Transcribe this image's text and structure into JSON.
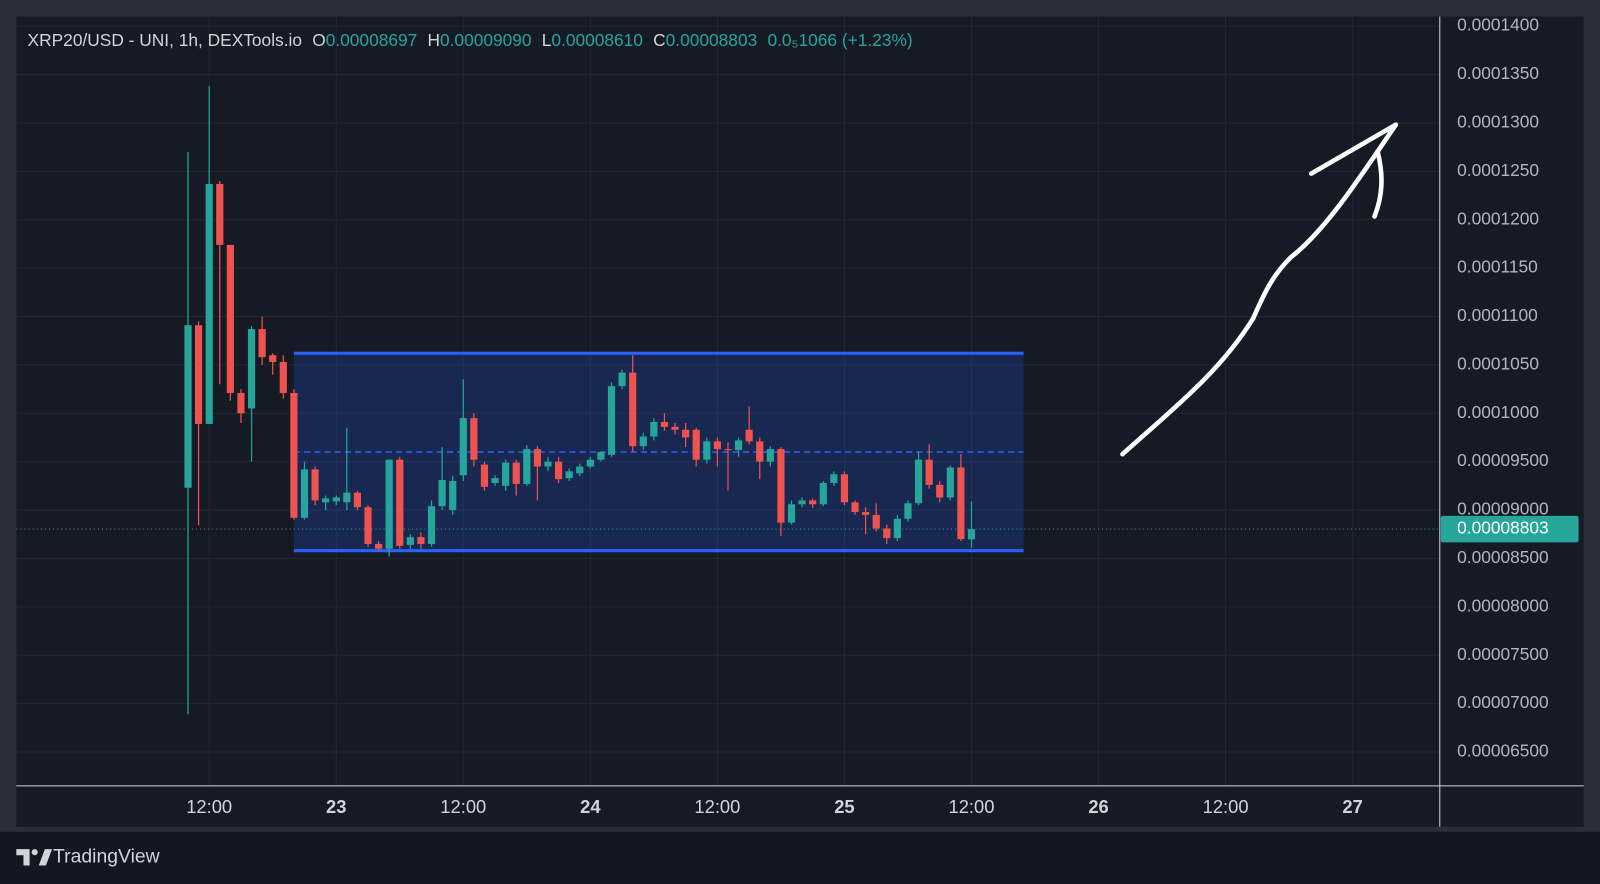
{
  "chart_data": {
    "type": "candlestick",
    "header": {
      "symbol": "XRP20/USD - UNI, 1h, DEXTools.io",
      "open_label": "O",
      "open": "0.00008697",
      "high_label": "H",
      "high": "0.00009090",
      "low_label": "L",
      "low": "0.00008610",
      "close_label": "C",
      "close": "0.00008803",
      "change": "0.0₅1066 (+1.23%)"
    },
    "x": [
      22.4167,
      22.4583,
      22.5,
      22.5417,
      22.5833,
      22.625,
      22.6667,
      22.7083,
      22.75,
      22.7917,
      22.8333,
      22.875,
      22.9167,
      22.9583,
      23,
      23.0417,
      23.0833,
      23.125,
      23.1667,
      23.2083,
      23.25,
      23.2917,
      23.3333,
      23.375,
      23.4167,
      23.4583,
      23.5,
      23.5417,
      23.5833,
      23.625,
      23.6667,
      23.7083,
      23.75,
      23.7917,
      23.8333,
      23.875,
      23.9167,
      23.9583,
      24,
      24.0417,
      24.0833,
      24.125,
      24.1667,
      24.2083,
      24.25,
      24.2917,
      24.3333,
      24.375,
      24.4167,
      24.4583,
      24.5,
      24.5417,
      24.5833,
      24.625,
      24.6667,
      24.7083,
      24.75,
      24.7917,
      24.8333,
      24.875,
      24.9167,
      24.9583,
      25,
      25.0417,
      25.0833,
      25.125,
      25.1667,
      25.2083,
      25.25,
      25.2917,
      25.3333,
      25.375,
      25.4167,
      25.4583,
      25.5
    ],
    "open": [
      9.23e-05,
      0.0001091,
      9.89e-05,
      0.0001237,
      0.0001174,
      0.0001021,
      0.0001005,
      0.0001087,
      0.000106,
      0.0001053,
      0.0001021,
      8.92e-05,
      9.42e-05,
      9.08e-05,
      9.09e-05,
      9.08e-05,
      9.18e-05,
      9.03e-05,
      8.65e-05,
      8.6e-05,
      9.52e-05,
      8.64e-05,
      8.72e-05,
      8.65e-05,
      9.04e-05,
      9e-05,
      9.36e-05,
      9.95e-05,
      9.47e-05,
      9.28e-05,
      9.25e-05,
      9.49e-05,
      9.27e-05,
      9.63e-05,
      9.45e-05,
      9.5e-05,
      9.33e-05,
      9.38e-05,
      9.45e-05,
      9.52e-05,
      9.57e-05,
      0.0001028,
      0.0001042,
      9.66e-05,
      9.76e-05,
      9.91e-05,
      9.86e-05,
      9.83e-05,
      9.83e-05,
      9.52e-05,
      9.71e-05,
      9.63e-05,
      9.62e-05,
      9.83e-05,
      9.71e-05,
      9.5e-05,
      9.63e-05,
      8.87e-05,
      9.06e-05,
      9.1e-05,
      9.06e-05,
      9.28e-05,
      9.37e-05,
      9.08e-05,
      8.98e-05,
      8.95e-05,
      8.81e-05,
      8.71e-05,
      8.91e-05,
      9.07e-05,
      9.52e-05,
      9.26e-05,
      9.13e-05,
      9.44e-05,
      8.697e-05
    ],
    "high": [
      0.000127,
      0.0001095,
      0.0001338,
      0.000124,
      0.0001174,
      0.0001025,
      0.000109,
      0.00011,
      0.0001062,
      0.000106,
      0.0001025,
      9.5e-05,
      9.45e-05,
      9.15e-05,
      9.15e-05,
      9.85e-05,
      9.2e-05,
      9.05e-05,
      8.68e-05,
      9.52e-05,
      9.55e-05,
      8.75e-05,
      8.77e-05,
      9.1e-05,
      9.65e-05,
      9.35e-05,
      0.0001035,
      0.0001,
      9.5e-05,
      9.36e-05,
      9.52e-05,
      9.52e-05,
      9.67e-05,
      9.66e-05,
      9.55e-05,
      9.55e-05,
      9.43e-05,
      9.48e-05,
      9.55e-05,
      9.6e-05,
      0.0001032,
      0.0001045,
      0.000106,
      9.8e-05,
      9.95e-05,
      0.0001,
      9.9e-05,
      9.9e-05,
      9.85e-05,
      9.75e-05,
      9.75e-05,
      9.7e-05,
      9.75e-05,
      0.0001007,
      9.75e-05,
      9.66e-05,
      9.65e-05,
      9.1e-05,
      9.13e-05,
      9.12e-05,
      9.3e-05,
      9.4e-05,
      9.4e-05,
      9.1e-05,
      9.03e-05,
      9.07e-05,
      8.85e-05,
      8.95e-05,
      9.1e-05,
      9.6e-05,
      9.68e-05,
      9.3e-05,
      9.46e-05,
      9.58e-05,
      9.09e-05
    ],
    "low": [
      6.89e-05,
      8.84e-05,
      9.89e-05,
      0.000103,
      0.0001013,
      9.9e-05,
      9.5e-05,
      0.000105,
      0.000104,
      0.0001015,
      8.9e-05,
      8.9e-05,
      9.05e-05,
      9e-05,
      9.05e-05,
      9e-05,
      9e-05,
      8.62e-05,
      8.58e-05,
      8.52e-05,
      8.6e-05,
      8.6e-05,
      8.6e-05,
      8.62e-05,
      9e-05,
      8.95e-05,
      9.3e-05,
      9.45e-05,
      9.2e-05,
      9.25e-05,
      9.2e-05,
      9.15e-05,
      9.25e-05,
      9.1e-05,
      9.4e-05,
      9.28e-05,
      9.3e-05,
      9.35e-05,
      9.43e-05,
      9.5e-05,
      9.55e-05,
      0.0001025,
      9.6e-05,
      9.62e-05,
      9.72e-05,
      9.82e-05,
      9.78e-05,
      9.65e-05,
      9.45e-05,
      9.48e-05,
      9.45e-05,
      9.2e-05,
      9.55e-05,
      9.68e-05,
      9.32e-05,
      9.45e-05,
      8.73e-05,
      8.85e-05,
      9.03e-05,
      9.02e-05,
      9.04e-05,
      9.25e-05,
      9.05e-05,
      8.95e-05,
      8.75e-05,
      8.78e-05,
      8.65e-05,
      8.68e-05,
      8.88e-05,
      9.05e-05,
      9.22e-05,
      9.08e-05,
      9.1e-05,
      8.68e-05,
      8.61e-05
    ],
    "close": [
      0.0001091,
      9.89e-05,
      0.0001237,
      0.0001174,
      0.0001021,
      0.0001,
      0.0001087,
      0.0001058,
      0.0001053,
      0.0001021,
      8.92e-05,
      9.42e-05,
      9.1e-05,
      9.12e-05,
      9.13e-05,
      9.18e-05,
      9.03e-05,
      8.65e-05,
      8.6e-05,
      9.52e-05,
      8.63e-05,
      8.72e-05,
      8.65e-05,
      9.04e-05,
      9.31e-05,
      9.3e-05,
      9.95e-05,
      9.52e-05,
      9.24e-05,
      9.33e-05,
      9.49e-05,
      9.27e-05,
      9.63e-05,
      9.45e-05,
      9.5e-05,
      9.32e-05,
      9.4e-05,
      9.45e-05,
      9.52e-05,
      9.6e-05,
      0.0001028,
      0.0001042,
      9.66e-05,
      9.76e-05,
      9.91e-05,
      9.86e-05,
      9.83e-05,
      9.75e-05,
      9.52e-05,
      9.71e-05,
      9.63e-05,
      9.62e-05,
      9.72e-05,
      9.71e-05,
      9.5e-05,
      9.63e-05,
      8.87e-05,
      9.06e-05,
      9.1e-05,
      9.06e-05,
      9.28e-05,
      9.37e-05,
      9.08e-05,
      8.98e-05,
      8.95e-05,
      8.81e-05,
      8.71e-05,
      8.91e-05,
      9.07e-05,
      9.52e-05,
      9.26e-05,
      9.13e-05,
      9.44e-05,
      8.7e-05,
      8.803e-05
    ],
    "up_color": "#26a69a",
    "down_color": "#ef5350",
    "last_price_label": "0.00008803",
    "range_box": {
      "x": [
        22.8333,
        25.705
      ],
      "y": [
        8.58e-05,
        0.0001062
      ],
      "color": "#2962ff"
    },
    "xlim": [
      21.741,
      27.343
    ],
    "ylim": [
      6.15e-05,
      0.000141
    ],
    "xticks": [
      {
        "value": 22.5,
        "label": "12:00"
      },
      23,
      {
        "value": 23.5,
        "label": "12:00"
      },
      24,
      {
        "value": 24.5,
        "label": "12:00"
      },
      25,
      {
        "value": 25.5,
        "label": "12:00"
      },
      26,
      {
        "value": 26.5,
        "label": "12:00"
      },
      27
    ],
    "yticks": [
      {
        "value": 6.5e-05,
        "label": "0.00006500"
      },
      {
        "value": 7e-05,
        "label": "0.00007000"
      },
      {
        "value": 7.5e-05,
        "label": "0.00007500"
      },
      {
        "value": 8e-05,
        "label": "0.00008000"
      },
      {
        "value": 8.5e-05,
        "label": "0.00008500"
      },
      {
        "value": 9e-05,
        "label": "0.00009000"
      },
      {
        "value": 9.5e-05,
        "label": "0.00009500"
      },
      {
        "value": 0.0001,
        "label": "0.0001000"
      },
      {
        "value": 0.000105,
        "label": "0.0001050"
      },
      {
        "value": 0.00011,
        "label": "0.0001100"
      },
      {
        "value": 0.000115,
        "label": "0.0001150"
      },
      {
        "value": 0.00012,
        "label": "0.0001200"
      },
      {
        "value": 0.000125,
        "label": "0.0001250"
      },
      {
        "value": 0.00013,
        "label": "0.0001300"
      },
      {
        "value": 0.000135,
        "label": "0.0001350"
      },
      {
        "value": 0.00014,
        "label": "0.0001400"
      }
    ],
    "grid": true,
    "brand": "TradingView"
  }
}
